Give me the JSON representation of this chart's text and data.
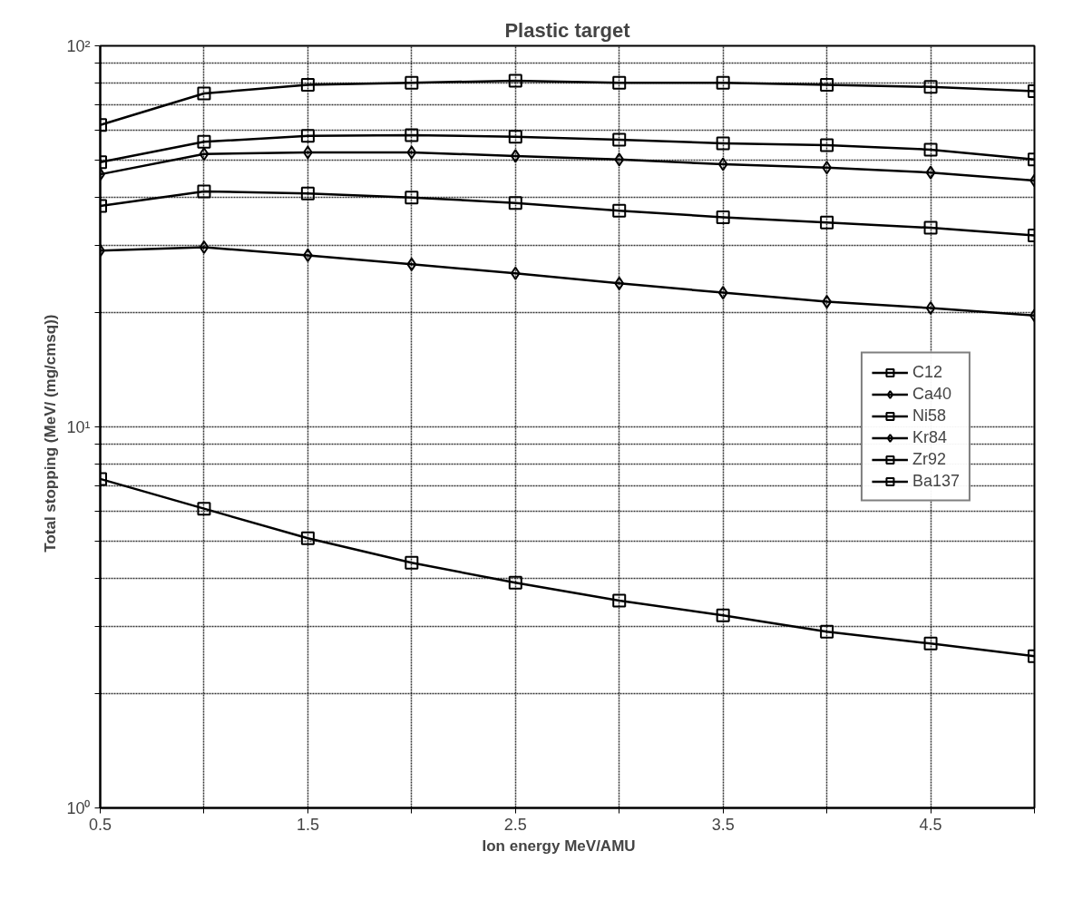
{
  "chart_data": {
    "type": "line",
    "title": "Plastic target",
    "xlabel": "Ion energy     MeV/AMU",
    "ylabel": "Total stopping    (MeV/ (mg/cmsq))",
    "x": [
      0.5,
      1.0,
      1.5,
      2.0,
      2.5,
      3.0,
      3.5,
      4.0,
      4.5,
      5.0
    ],
    "xlim": [
      0.5,
      5.0
    ],
    "xticks": [
      0.5,
      {
        "value": 1.0,
        "label": null
      },
      1.5,
      {
        "value": 2.0,
        "label": null
      },
      2.5,
      {
        "value": 3.0,
        "label": null
      },
      3.5,
      {
        "value": 4.0,
        "label": null
      },
      4.5,
      {
        "value": 5.0,
        "label": null
      }
    ],
    "log": true,
    "ylim": [
      1,
      100
    ],
    "yticks": [
      {
        "value": 1,
        "label": "10⁰"
      },
      {
        "value": 2,
        "label": null
      },
      {
        "value": 3,
        "label": null
      },
      {
        "value": 4,
        "label": null
      },
      {
        "value": 5,
        "label": null
      },
      {
        "value": 6,
        "label": null
      },
      {
        "value": 7,
        "label": null
      },
      {
        "value": 8,
        "label": null
      },
      {
        "value": 9,
        "label": null
      },
      {
        "value": 10,
        "label": "10¹"
      },
      {
        "value": 20,
        "label": null
      },
      {
        "value": 30,
        "label": null
      },
      {
        "value": 40,
        "label": null
      },
      {
        "value": 50,
        "label": null
      },
      {
        "value": 60,
        "label": null
      },
      {
        "value": 70,
        "label": null
      },
      {
        "value": 80,
        "label": null
      },
      {
        "value": 90,
        "label": null
      },
      {
        "value": 100,
        "label": "10²"
      }
    ],
    "grid": true,
    "legend": "right",
    "line_style": "solid",
    "series": [
      {
        "name": "C12",
        "color": "#000000",
        "marker": "square",
        "values": [
          7.3,
          6.1,
          5.1,
          4.4,
          3.9,
          3.5,
          3.2,
          2.9,
          2.7,
          2.5
        ]
      },
      {
        "name": "Ca40",
        "color": "#000000",
        "marker": "diamond",
        "values": [
          29,
          29.6,
          28.2,
          26.7,
          25.3,
          23.8,
          22.5,
          21.3,
          20.5,
          19.6
        ]
      },
      {
        "name": "Ni58",
        "color": "#000000",
        "marker": "square",
        "values": [
          38,
          41.5,
          41,
          40,
          38.7,
          36.9,
          35.5,
          34.4,
          33.3,
          31.8
        ]
      },
      {
        "name": "Kr84",
        "color": "#000000",
        "marker": "diamond",
        "values": [
          46,
          52,
          52.5,
          52.5,
          51.4,
          50.3,
          48.9,
          47.9,
          46.5,
          44.3
        ]
      },
      {
        "name": "Zr92",
        "color": "#000000",
        "marker": "square",
        "values": [
          49.5,
          56,
          58,
          58.3,
          57.7,
          56.7,
          55.5,
          54.9,
          53.4,
          50.3
        ]
      },
      {
        "name": "Ba137",
        "color": "#000000",
        "marker": "square",
        "values": [
          62,
          75,
          79,
          80,
          81,
          80,
          80,
          79,
          78,
          76
        ]
      }
    ]
  }
}
